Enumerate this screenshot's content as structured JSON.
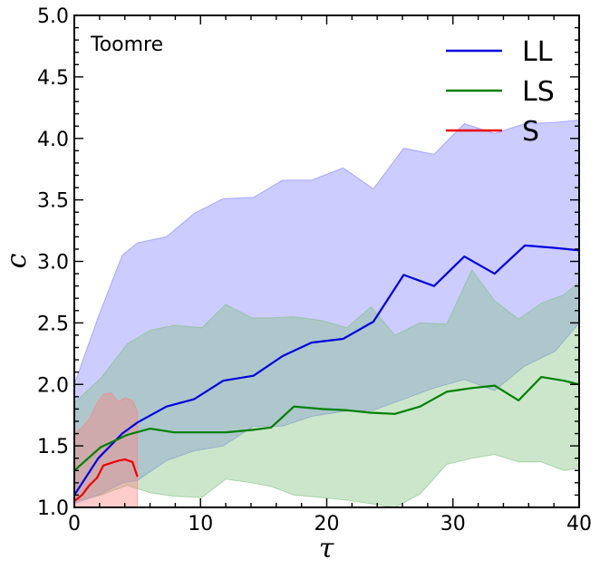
{
  "chart_data": {
    "type": "line",
    "annotation": "Toomre",
    "xlabel": "τ",
    "ylabel": "c",
    "xlim": [
      0,
      40
    ],
    "ylim": [
      1.0,
      5.0
    ],
    "x_ticks": [
      0,
      10,
      20,
      30,
      40
    ],
    "y_ticks": [
      1.0,
      1.5,
      2.0,
      2.5,
      3.0,
      3.5,
      4.0,
      4.5,
      5.0
    ],
    "grid": false,
    "legend_position": "top-right",
    "series": [
      {
        "name": "LL",
        "color": "#0000dd",
        "band_color": "#8080ff",
        "band_opacity": 0.4,
        "x": [
          0,
          1.9,
          3.8,
          5.0,
          7.3,
          9.5,
          11.8,
          14.2,
          16.5,
          18.8,
          21.3,
          23.7,
          26.1,
          28.5,
          30.9,
          33.3,
          35.7,
          38.1,
          40
        ],
        "y": [
          1.1,
          1.4,
          1.6,
          1.69,
          1.82,
          1.88,
          2.03,
          2.07,
          2.23,
          2.34,
          2.37,
          2.51,
          2.89,
          2.8,
          3.04,
          2.9,
          3.13,
          3.11,
          3.09
        ],
        "lower": [
          1.03,
          1.1,
          1.2,
          1.22,
          1.38,
          1.46,
          1.5,
          1.66,
          1.66,
          1.74,
          1.78,
          1.79,
          1.88,
          1.97,
          2.04,
          1.95,
          2.15,
          2.27,
          2.5
        ],
        "upper": [
          2.0,
          2.55,
          3.05,
          3.15,
          3.2,
          3.39,
          3.51,
          3.52,
          3.66,
          3.66,
          3.76,
          3.59,
          3.92,
          3.87,
          4.12,
          4.04,
          4.12,
          4.13,
          4.15
        ]
      },
      {
        "name": "LS",
        "color": "#008000",
        "band_color": "#80c080",
        "band_opacity": 0.4,
        "x": [
          0,
          2.1,
          4.2,
          6.0,
          7.9,
          10.1,
          12.0,
          14.1,
          15.6,
          17.4,
          19.6,
          21.6,
          23.5,
          25.4,
          27.4,
          29.5,
          31.5,
          33.3,
          35.2,
          37.0,
          38.8,
          40
        ],
        "y": [
          1.3,
          1.49,
          1.59,
          1.64,
          1.61,
          1.61,
          1.61,
          1.63,
          1.65,
          1.82,
          1.8,
          1.79,
          1.77,
          1.76,
          1.82,
          1.94,
          1.97,
          1.99,
          1.87,
          2.06,
          2.03,
          2.0
        ],
        "lower": [
          1.05,
          1.1,
          1.18,
          1.12,
          1.09,
          1.08,
          1.23,
          1.2,
          1.17,
          1.1,
          1.08,
          1.06,
          1.03,
          1.0,
          1.11,
          1.35,
          1.4,
          1.43,
          1.37,
          1.37,
          1.3,
          1.32
        ],
        "upper": [
          1.85,
          2.05,
          2.33,
          2.44,
          2.48,
          2.46,
          2.65,
          2.54,
          2.54,
          2.55,
          2.52,
          2.46,
          2.63,
          2.4,
          2.5,
          2.49,
          2.93,
          2.68,
          2.53,
          2.66,
          2.73,
          2.83
        ]
      },
      {
        "name": "S",
        "color": "#ee0000",
        "band_color": "#ff8080",
        "band_opacity": 0.4,
        "x": [
          0,
          0.6,
          1.2,
          1.8,
          2.3,
          2.9,
          3.5,
          4.0,
          4.6,
          5.0
        ],
        "y": [
          1.05,
          1.1,
          1.18,
          1.24,
          1.34,
          1.36,
          1.38,
          1.39,
          1.37,
          1.25
        ],
        "lower": [
          1.0,
          1.0,
          1.0,
          1.0,
          1.0,
          1.0,
          1.0,
          1.0,
          1.0,
          1.0
        ],
        "upper": [
          1.6,
          1.65,
          1.72,
          1.85,
          1.92,
          1.93,
          1.86,
          1.89,
          1.87,
          1.78
        ]
      }
    ]
  }
}
